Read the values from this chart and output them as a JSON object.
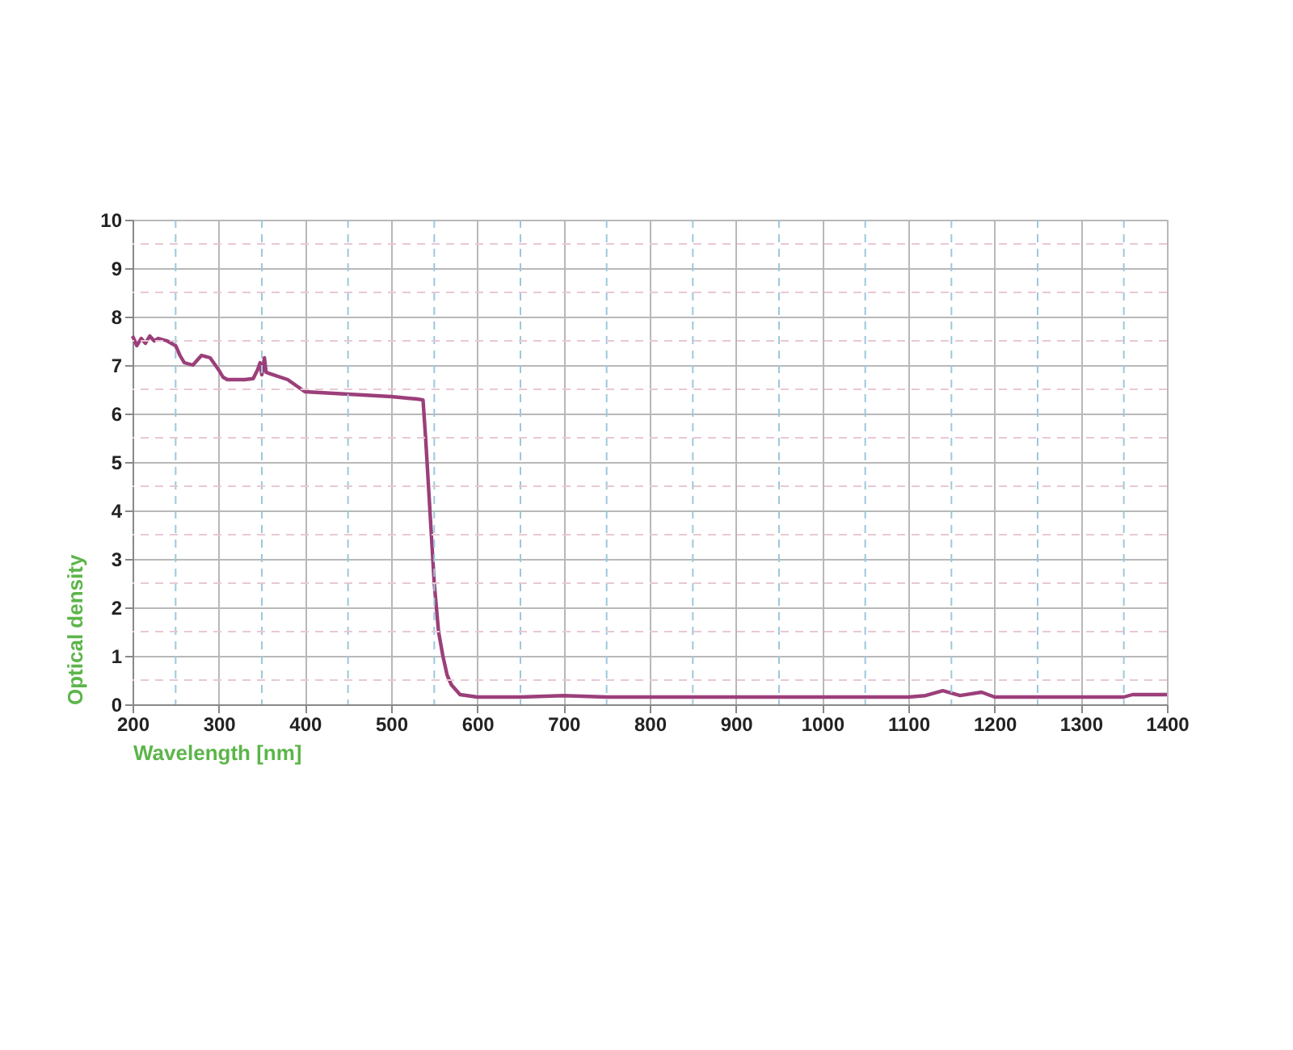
{
  "chart_data": {
    "type": "line",
    "xlabel": "Wavelength [nm]",
    "ylabel": "Optical density",
    "x": [
      200,
      205,
      210,
      215,
      220,
      225,
      230,
      240,
      250,
      255,
      260,
      270,
      280,
      290,
      300,
      305,
      310,
      320,
      330,
      340,
      345,
      348,
      350,
      353,
      355,
      360,
      380,
      400,
      450,
      500,
      530,
      537,
      540,
      545,
      550,
      555,
      560,
      565,
      570,
      580,
      600,
      650,
      700,
      750,
      800,
      900,
      1000,
      1100,
      1120,
      1140,
      1160,
      1185,
      1200,
      1300,
      1350,
      1360,
      1400
    ],
    "series": [
      {
        "color": "#9b3f7a",
        "values": [
          7.6,
          7.4,
          7.55,
          7.45,
          7.6,
          7.5,
          7.55,
          7.5,
          7.4,
          7.2,
          7.05,
          7.0,
          7.2,
          7.15,
          6.9,
          6.75,
          6.7,
          6.7,
          6.7,
          6.72,
          6.9,
          7.05,
          6.8,
          7.15,
          6.85,
          6.82,
          6.7,
          6.45,
          6.4,
          6.35,
          6.3,
          6.28,
          5.5,
          4.0,
          2.5,
          1.5,
          1.0,
          0.6,
          0.4,
          0.2,
          0.15,
          0.15,
          0.18,
          0.15,
          0.15,
          0.15,
          0.15,
          0.15,
          0.18,
          0.28,
          0.18,
          0.25,
          0.15,
          0.15,
          0.15,
          0.2,
          0.2
        ]
      }
    ],
    "xlim": [
      200,
      1400
    ],
    "ylim": [
      0,
      10
    ],
    "xticks": [
      200,
      {
        "value": 250,
        "label": null
      },
      300,
      {
        "value": 350,
        "label": null
      },
      400,
      {
        "value": 450,
        "label": null
      },
      500,
      {
        "value": 550,
        "label": null
      },
      600,
      {
        "value": 650,
        "label": null
      },
      700,
      {
        "value": 750,
        "label": null
      },
      800,
      {
        "value": 850,
        "label": null
      },
      900,
      {
        "value": 950,
        "label": null
      },
      1000,
      {
        "value": 1050,
        "label": null
      },
      1100,
      {
        "value": 1150,
        "label": null
      },
      1200,
      {
        "value": 1250,
        "label": null
      },
      1300,
      {
        "value": 1350,
        "label": null
      },
      1400
    ],
    "yticks": [
      0,
      {
        "value": 0.5,
        "label": null
      },
      1,
      {
        "value": 1.5,
        "label": null
      },
      2,
      {
        "value": 2.5,
        "label": null
      },
      3,
      {
        "value": 3.5,
        "label": null
      },
      4,
      {
        "value": 4.5,
        "label": null
      },
      5,
      {
        "value": 5.5,
        "label": null
      },
      6,
      {
        "value": 6.5,
        "label": null
      },
      7,
      {
        "value": 7.5,
        "label": null
      },
      8,
      {
        "value": 8.5,
        "label": null
      },
      9,
      {
        "value": 9.5,
        "label": null
      },
      10
    ],
    "grid": true,
    "legend": false,
    "marker": "none",
    "line_style": "solid"
  }
}
